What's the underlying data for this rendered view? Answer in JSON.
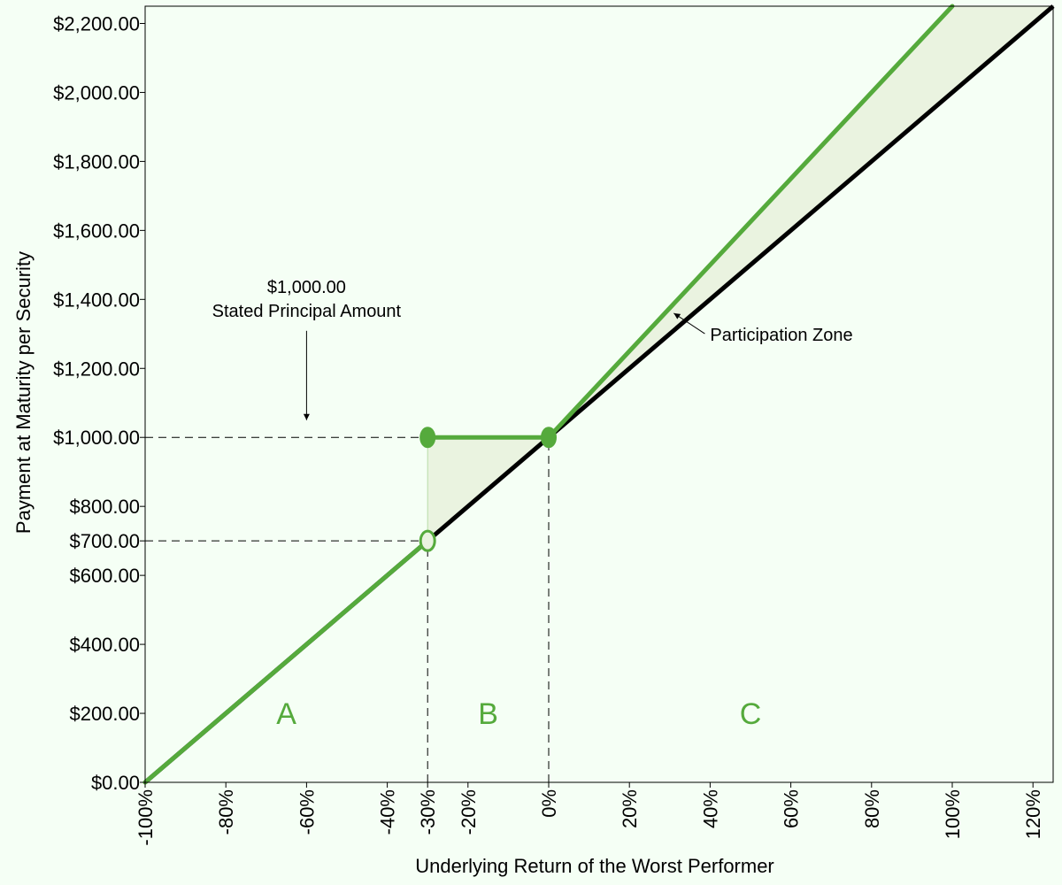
{
  "chart_data": {
    "type": "line",
    "title": "",
    "xlabel": "Underlying Return of the Worst Performer",
    "ylabel": "Payment at Maturity per Security",
    "xlim": [
      -100,
      125
    ],
    "ylim": [
      0,
      2250
    ],
    "x_ticks": [
      -100,
      -80,
      -60,
      -40,
      -30,
      -20,
      0,
      20,
      40,
      60,
      80,
      100,
      120
    ],
    "x_tick_labels": [
      "-100%",
      "-80%",
      "-60%",
      "-40%",
      "-30%",
      "-20%",
      "0%",
      "20%",
      "40%",
      "60%",
      "80%",
      "100%",
      "120%"
    ],
    "y_ticks": [
      0,
      200,
      400,
      600,
      700,
      800,
      1000,
      1200,
      1400,
      1600,
      1800,
      2000,
      2200
    ],
    "y_tick_labels": [
      "$0.00",
      "$200.00",
      "$400.00",
      "$600.00",
      "$700.00",
      "$800.00",
      "$1,000.00",
      "$1,200.00",
      "$1,400.00",
      "$1,600.00",
      "$1,800.00",
      "$2,000.00",
      "$2,200.00"
    ],
    "grid": false,
    "series": [
      {
        "color": "#000000",
        "x": [
          -100,
          125
        ],
        "y": [
          0,
          2250
        ]
      },
      {
        "color": "#55aa3c",
        "segments": [
          {
            "x": [
              -100,
              -30
            ],
            "y": [
              0,
              700
            ]
          },
          {
            "x": [
              -30,
              0
            ],
            "y": [
              1000,
              1000
            ]
          },
          {
            "x": [
              0,
              100
            ],
            "y": [
              1000,
              2250
            ]
          }
        ]
      }
    ],
    "markers": [
      {
        "x": -30,
        "y": 1000,
        "filled": true
      },
      {
        "x": 0,
        "y": 1000,
        "filled": true
      },
      {
        "x": -30,
        "y": 700,
        "filled": false
      }
    ],
    "reference_lines": [
      {
        "y": 1000,
        "x_range": [
          -100,
          -30
        ]
      },
      {
        "y": 700,
        "x_range": [
          -100,
          -30
        ]
      },
      {
        "x": -30,
        "y_range": [
          0,
          700
        ]
      },
      {
        "x": 0,
        "y_range": [
          0,
          1000
        ]
      }
    ],
    "shaded_regions": [
      {
        "name": "buffer",
        "color": "#eaf3e0"
      },
      {
        "name": "participation",
        "color": "#eaf3e0"
      }
    ],
    "annotations": [
      {
        "lines": [
          "$1,000.00",
          "Stated Principal Amount"
        ],
        "x": -60,
        "y": 1350,
        "arrow_to": {
          "x": -60,
          "y": 1050
        }
      },
      {
        "lines": [
          "Participation Zone"
        ],
        "x": 40,
        "y": 1280,
        "arrow_to": {
          "x": 31,
          "y": 1360
        }
      }
    ],
    "zone_labels": [
      {
        "text": "A",
        "x": -65,
        "y": 200
      },
      {
        "text": "B",
        "x": -15,
        "y": 200
      },
      {
        "text": "C",
        "x": 50,
        "y": 200
      }
    ],
    "colors": {
      "accent_green": "#55aa3c",
      "fill_green": "#eaf3e0",
      "background": "#f5fff5"
    }
  }
}
